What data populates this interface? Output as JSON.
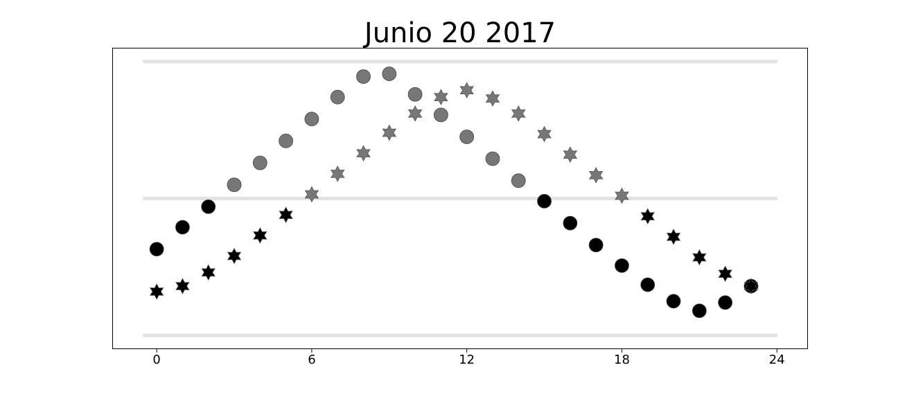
{
  "chart_data": {
    "type": "scatter",
    "title": "Junio 20 2017",
    "x": [
      0,
      1,
      2,
      3,
      4,
      5,
      6,
      7,
      8,
      9,
      10,
      11,
      12,
      13,
      14,
      15,
      16,
      17,
      18,
      19,
      20,
      21,
      22,
      23
    ],
    "series": [
      {
        "marker": "circle",
        "color": "#000000",
        "color_above": "#777777",
        "values": [
          -0.37,
          -0.21,
          -0.06,
          0.1,
          0.26,
          0.42,
          0.58,
          0.74,
          0.89,
          0.91,
          0.76,
          0.61,
          0.45,
          0.29,
          0.13,
          -0.02,
          -0.18,
          -0.34,
          -0.49,
          -0.63,
          -0.75,
          -0.82,
          -0.76,
          -0.64
        ]
      },
      {
        "marker": "star",
        "color": "#000000",
        "color_above": "#777777",
        "values": [
          -0.68,
          -0.64,
          -0.54,
          -0.42,
          -0.27,
          -0.12,
          0.03,
          0.18,
          0.33,
          0.48,
          0.62,
          0.74,
          0.79,
          0.73,
          0.62,
          0.47,
          0.32,
          0.17,
          0.02,
          -0.13,
          -0.28,
          -0.43,
          -0.55,
          -0.64
        ]
      }
    ],
    "color_threshold": 0,
    "xlim": [
      -1.72,
      25.2
    ],
    "xticks": [
      0,
      6,
      12,
      18,
      24
    ],
    "ylim": [
      -1.1,
      1.1
    ],
    "hlines": [
      -1,
      0,
      1
    ],
    "hline_color": "#e3e3e3"
  }
}
